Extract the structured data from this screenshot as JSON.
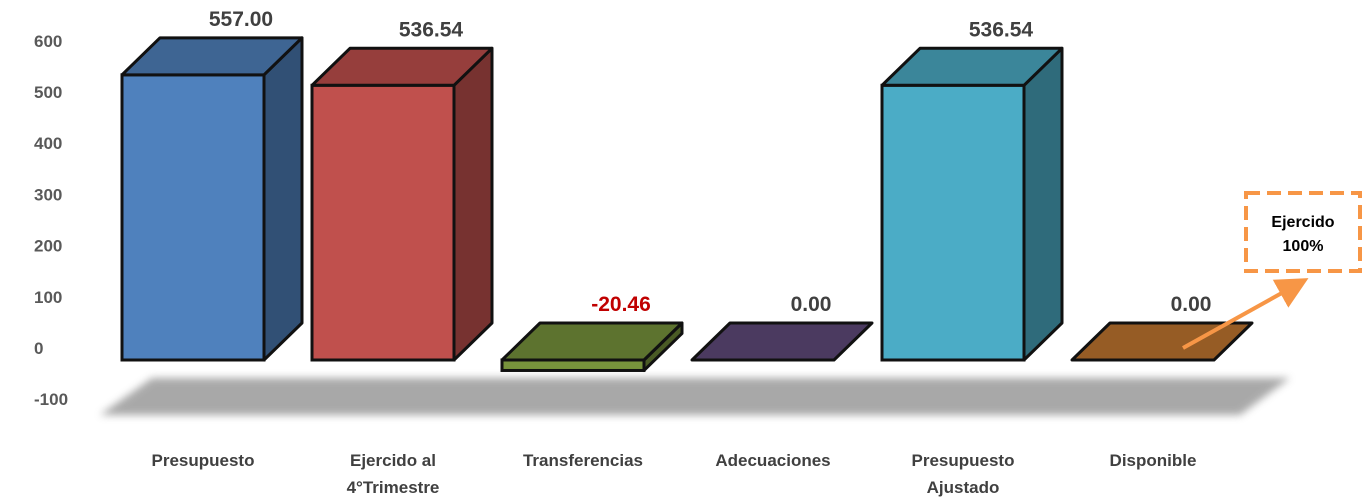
{
  "chart_data": {
    "type": "bar",
    "categories": [
      [
        "Presupuesto"
      ],
      [
        "Ejercido al",
        "4°Trimestre"
      ],
      [
        "Transferencias"
      ],
      [
        "Adecuaciones"
      ],
      [
        "Presupuesto",
        "Ajustado"
      ],
      [
        "Disponible"
      ]
    ],
    "values": [
      557.0,
      536.54,
      -20.46,
      0.0,
      536.54,
      0.0
    ],
    "value_labels": [
      "557.00",
      "536.54",
      "-20.46",
      "0.00",
      "536.54",
      "0.00"
    ],
    "label_colors": [
      "#404040",
      "#404040",
      "#c00000",
      "#404040",
      "#404040",
      "#404040"
    ],
    "colors": [
      "#4f81bd",
      "#c0504d",
      "#77933c",
      "#604a7b",
      "#4bacc6",
      "#c0762f"
    ],
    "ylim": [
      -100,
      600
    ],
    "yticks": [
      600,
      500,
      400,
      300,
      200,
      100,
      0,
      -100
    ],
    "grid": false,
    "style": "3d-column",
    "annotation": {
      "lines": [
        "Ejercido",
        "100%"
      ],
      "color": "#f79646",
      "points_to": "Disponible"
    }
  }
}
